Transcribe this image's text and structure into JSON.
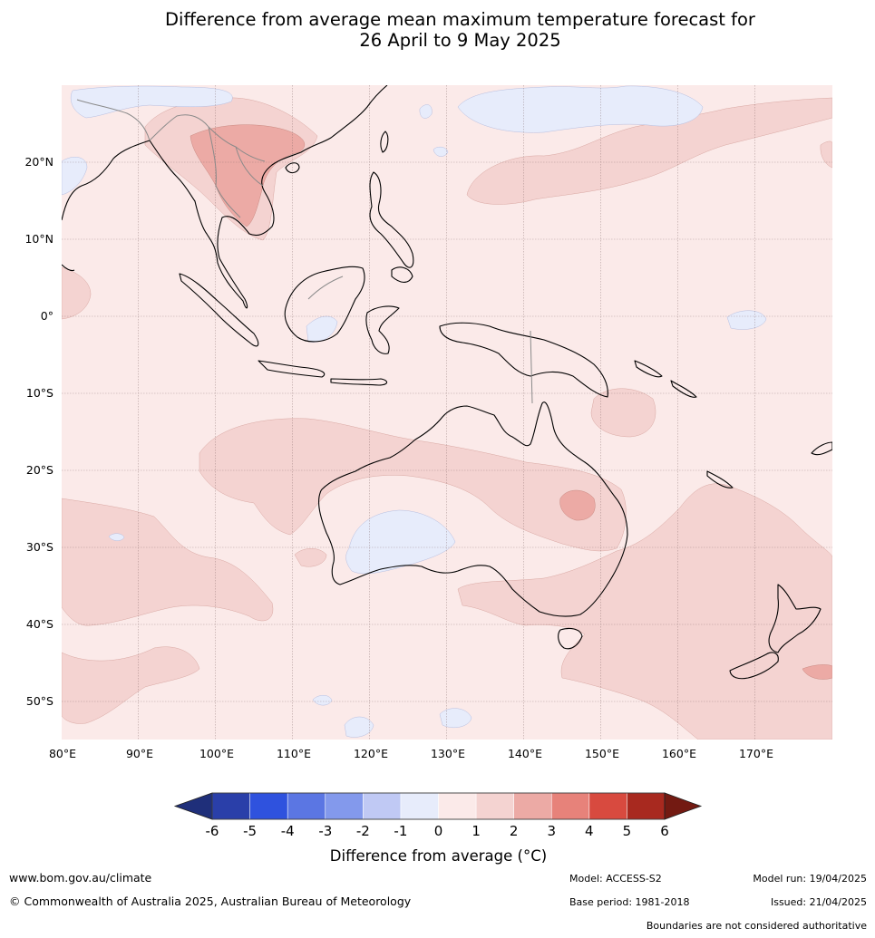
{
  "title": {
    "line1": "Difference from average mean maximum temperature forecast for",
    "line2": "26 April to 9 May 2025"
  },
  "map": {
    "lon_labels": [
      "80°E",
      "90°E",
      "100°E",
      "110°E",
      "120°E",
      "130°E",
      "140°E",
      "150°E",
      "160°E",
      "170°E"
    ],
    "lat_labels": [
      "20°N",
      "10°N",
      "0°",
      "10°S",
      "20°S",
      "30°S",
      "40°S",
      "50°S"
    ],
    "extent": {
      "lon": [
        80,
        180
      ],
      "lat": [
        -55,
        30
      ]
    }
  },
  "colorbar": {
    "labels": [
      "-6",
      "-5",
      "-4",
      "-3",
      "-2",
      "-1",
      "0",
      "1",
      "2",
      "3",
      "4",
      "5",
      "6"
    ],
    "title": "Difference from average (°C)",
    "colors": {
      "below_min": "#1f2f7a",
      "bins": [
        "#2a3fa9",
        "#2f52de",
        "#5b76e3",
        "#8399ec",
        "#c0c9f4",
        "#e7ecfb",
        "#fbeae9",
        "#f4d3d1",
        "#ecaaa5",
        "#e7827a",
        "#d84a3f",
        "#a8291f"
      ],
      "above_max": "#731a12"
    }
  },
  "footer": {
    "website": "www.bom.gov.au/climate",
    "copyright": "© Commonwealth of Australia 2025, Australian Bureau of Meteorology",
    "model": "Model: ACCESS-S2",
    "base_period": "Base period: 1981-2018",
    "model_run": "Model run: 19/04/2025",
    "issued": "Issued: 21/04/2025",
    "disclaimer": "Boundaries are not considered authoritative"
  }
}
